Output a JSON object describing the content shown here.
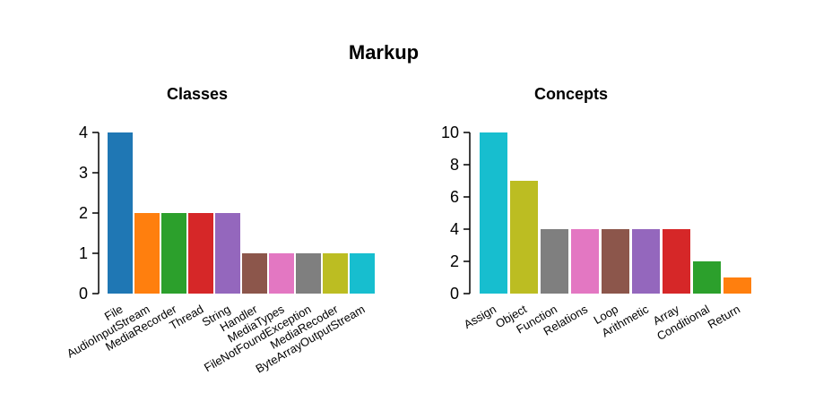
{
  "figure_title": "Markup",
  "chart_data": [
    {
      "type": "bar",
      "title": "Classes",
      "xlabel": "",
      "ylabel": "",
      "ylim": [
        0,
        4
      ],
      "yticks": [
        0,
        1,
        2,
        3,
        4
      ],
      "grid": false,
      "categories": [
        "File",
        "AudioInputStream",
        "MediaRecorder",
        "Thread",
        "String",
        "Handler",
        "MediaTypes",
        "FileNotFoundException",
        "MediaRecoder",
        "ByteArrayOutputStream"
      ],
      "values": [
        4,
        2,
        2,
        2,
        2,
        1,
        1,
        1,
        1,
        1
      ],
      "colors": [
        "#1f77b4",
        "#ff7f0e",
        "#2ca02c",
        "#d62728",
        "#9467bd",
        "#8c564b",
        "#e377c2",
        "#7f7f7f",
        "#bcbd22",
        "#17becf"
      ]
    },
    {
      "type": "bar",
      "title": "Concepts",
      "xlabel": "",
      "ylabel": "",
      "ylim": [
        0,
        10
      ],
      "yticks": [
        0,
        2,
        4,
        6,
        8,
        10
      ],
      "grid": false,
      "categories": [
        "Assign",
        "Object",
        "Function",
        "Relations",
        "Loop",
        "Arithmetic",
        "Array",
        "Conditional",
        "Return"
      ],
      "values": [
        10,
        7,
        4,
        4,
        4,
        4,
        4,
        2,
        1
      ],
      "colors": [
        "#17becf",
        "#bcbd22",
        "#7f7f7f",
        "#e377c2",
        "#8c564b",
        "#9467bd",
        "#d62728",
        "#2ca02c",
        "#ff7f0e"
      ]
    }
  ]
}
